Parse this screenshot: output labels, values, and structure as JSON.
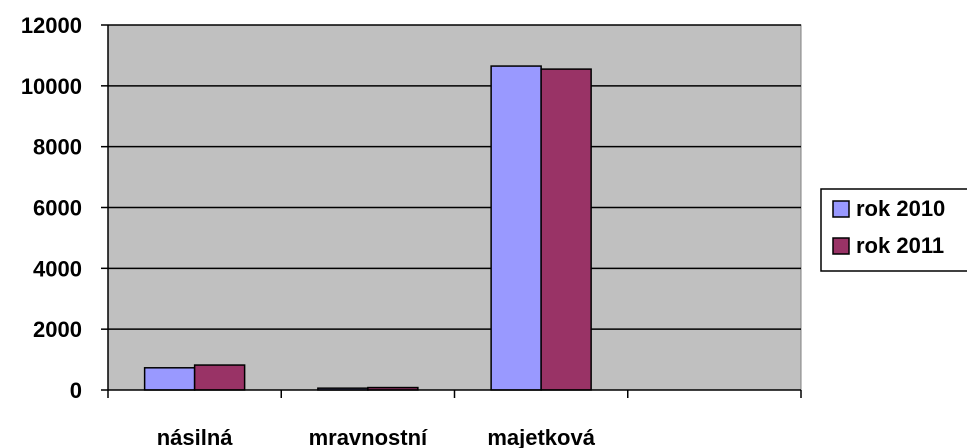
{
  "chart_data": {
    "type": "bar",
    "categories": [
      "násilná",
      "mravnostní",
      "majetková",
      ""
    ],
    "series": [
      {
        "name": "rok 2010",
        "color": "#9999ff",
        "values": [
          730,
          60,
          10650,
          0
        ]
      },
      {
        "name": "rok 2011",
        "color": "#993366",
        "values": [
          820,
          80,
          10550,
          0
        ]
      }
    ],
    "yticks": [
      "0",
      "2000",
      "4000",
      "6000",
      "8000",
      "10000",
      "12000"
    ],
    "ylim": [
      0,
      12000
    ],
    "grid": true,
    "plot_background": "#c0c0c0",
    "legend_position": "right"
  }
}
